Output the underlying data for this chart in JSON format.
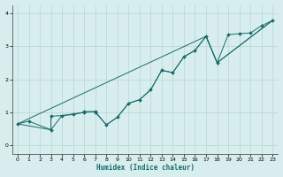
{
  "xlabel": "Humidex (Indice chaleur)",
  "background_color": "#d8eeee",
  "grid_color": "#b8d4d4",
  "line_color": "#1a6b6b",
  "xlim": [
    -0.5,
    23.5
  ],
  "ylim": [
    -0.25,
    4.25
  ],
  "xticks": [
    0,
    1,
    2,
    3,
    4,
    5,
    6,
    7,
    8,
    9,
    10,
    11,
    12,
    13,
    14,
    15,
    16,
    17,
    18,
    19,
    20,
    21,
    22,
    23
  ],
  "yticks": [
    0,
    1,
    2,
    3,
    4
  ],
  "line1_points": [
    [
      0,
      0.65
    ],
    [
      1,
      0.73
    ],
    [
      3,
      0.47
    ],
    [
      3,
      0.88
    ],
    [
      4,
      0.9
    ],
    [
      5,
      0.93
    ],
    [
      6,
      1.0
    ],
    [
      6,
      1.02
    ],
    [
      7,
      1.02
    ],
    [
      7,
      1.0
    ],
    [
      8,
      0.62
    ],
    [
      9,
      0.85
    ],
    [
      10,
      1.27
    ],
    [
      11,
      1.38
    ],
    [
      12,
      1.68
    ],
    [
      13,
      2.27
    ],
    [
      14,
      2.2
    ],
    [
      15,
      2.68
    ],
    [
      16,
      2.87
    ],
    [
      17,
      3.3
    ],
    [
      18,
      2.5
    ],
    [
      19,
      3.35
    ],
    [
      20,
      3.38
    ],
    [
      21,
      3.4
    ],
    [
      22,
      3.62
    ],
    [
      23,
      3.78
    ]
  ],
  "line2_points": [
    [
      0,
      0.65
    ],
    [
      3,
      0.47
    ],
    [
      4,
      0.9
    ],
    [
      6,
      1.0
    ],
    [
      7,
      1.02
    ],
    [
      8,
      0.62
    ],
    [
      9,
      0.85
    ],
    [
      10,
      1.27
    ],
    [
      11,
      1.38
    ],
    [
      12,
      1.68
    ],
    [
      13,
      2.27
    ],
    [
      14,
      2.2
    ],
    [
      15,
      2.68
    ],
    [
      16,
      2.87
    ],
    [
      17,
      3.3
    ],
    [
      18,
      2.5
    ],
    [
      23,
      3.78
    ]
  ],
  "line3_points": [
    [
      0,
      0.65
    ],
    [
      17,
      3.3
    ],
    [
      18,
      2.5
    ],
    [
      23,
      3.78
    ]
  ]
}
